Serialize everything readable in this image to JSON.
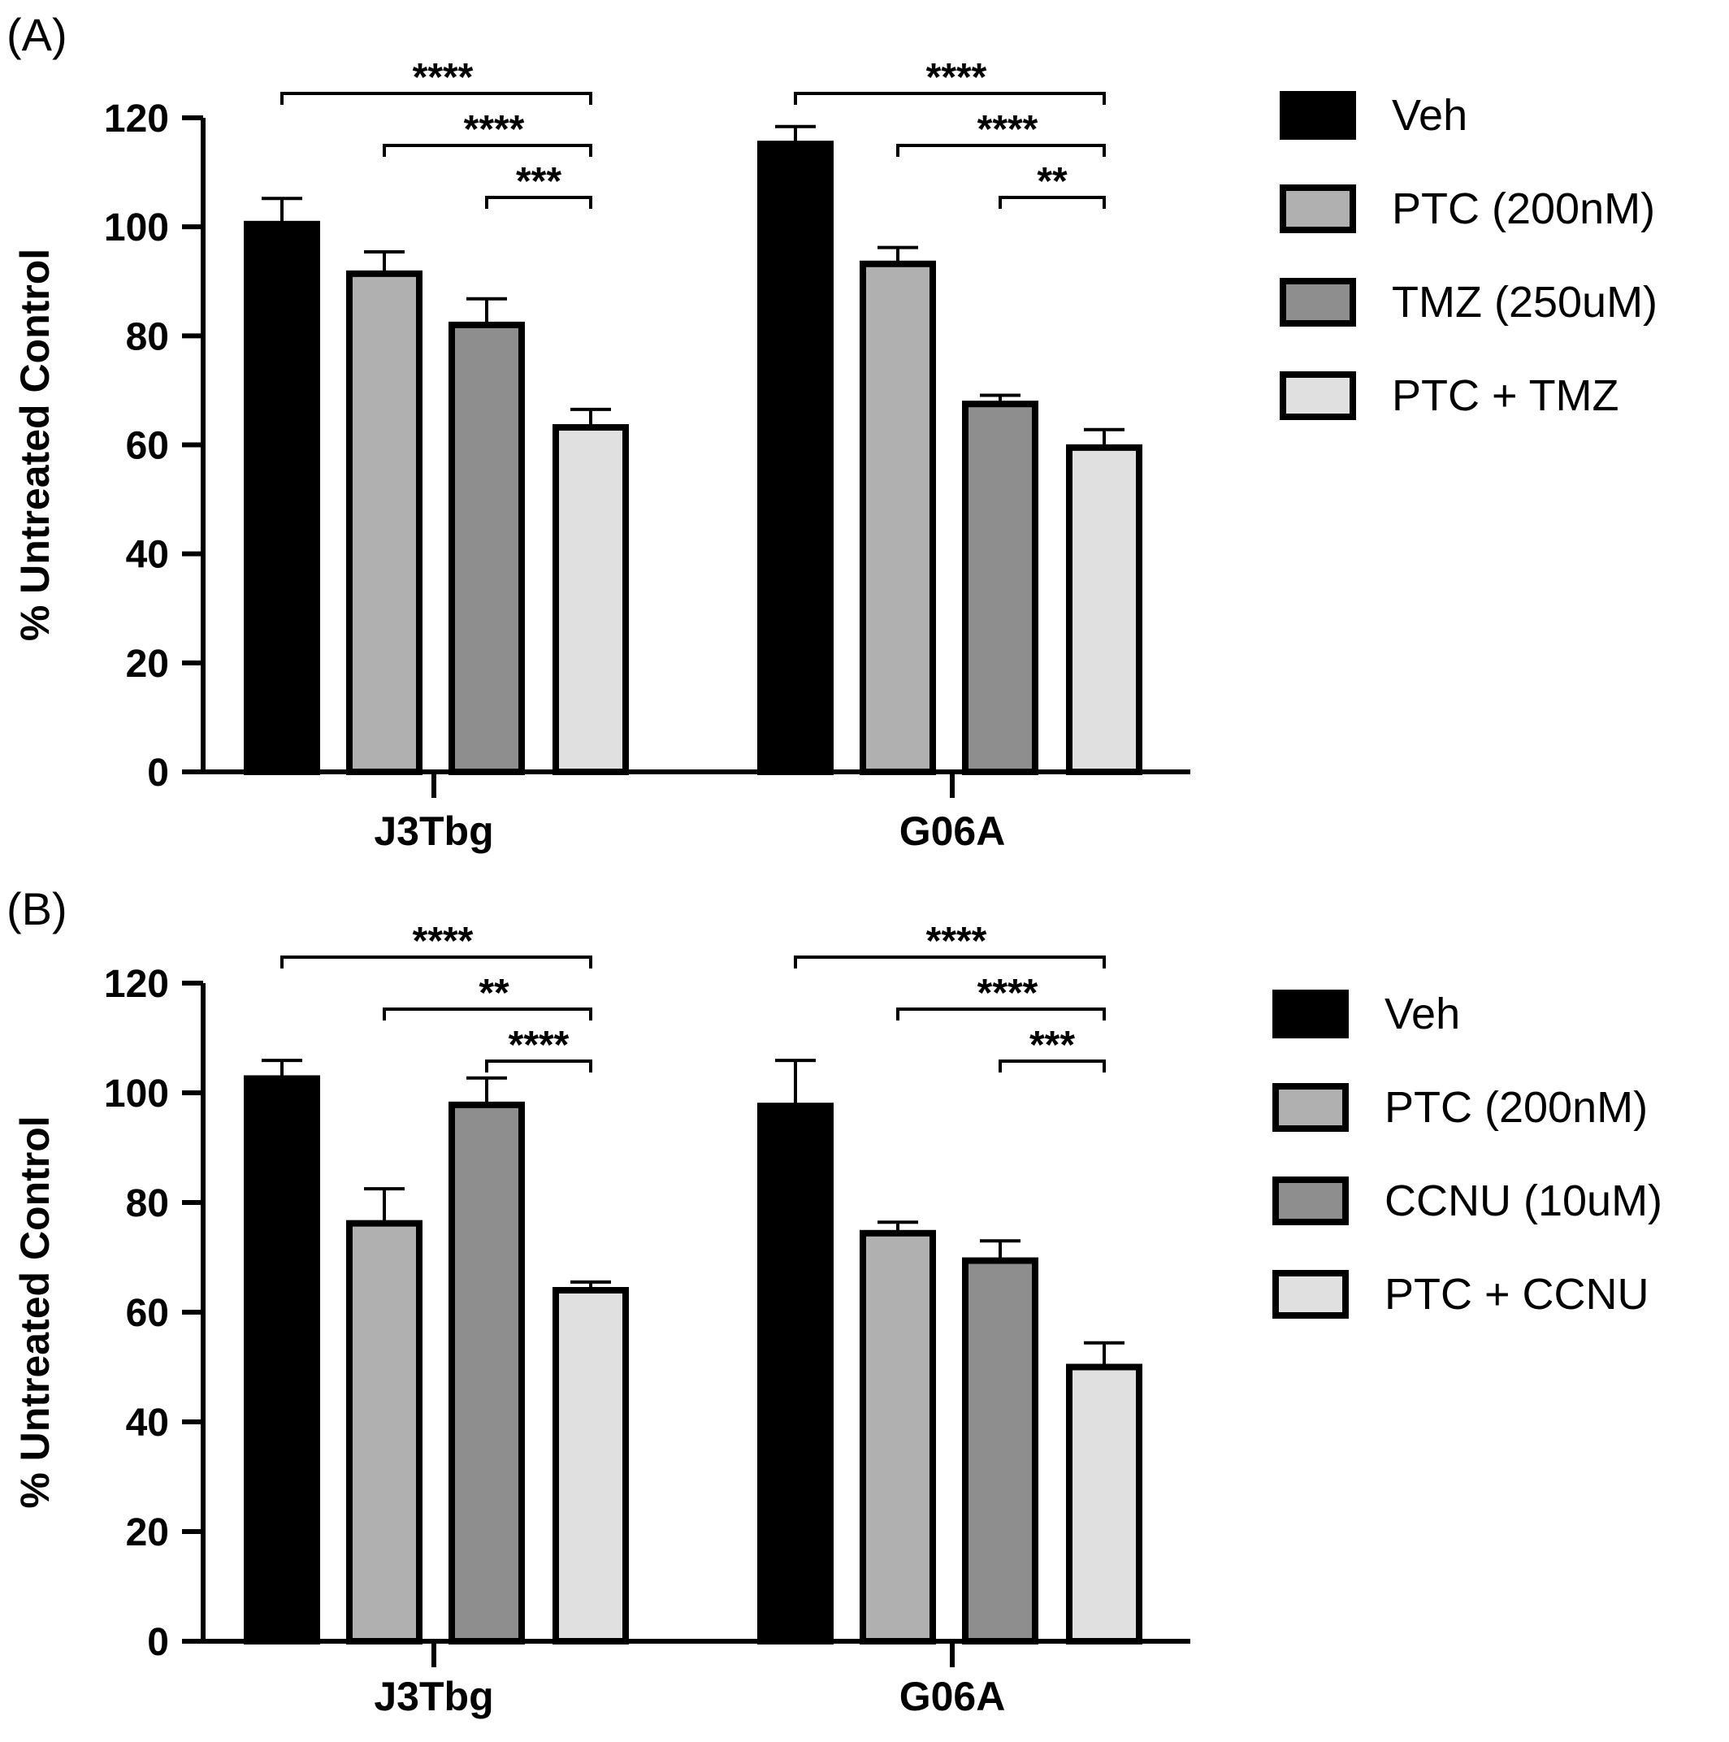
{
  "chart_data": [
    {
      "type": "bar",
      "panel_label": "(A)",
      "ylabel": "% Untreated Control",
      "ylim": [
        0,
        120
      ],
      "yticks": [
        "0",
        "20",
        "40",
        "60",
        "80",
        "100",
        "120"
      ],
      "categories": [
        "J3Tbg",
        "G06A"
      ],
      "legend_position": "right",
      "series": [
        {
          "name": "Veh",
          "color": "#000000",
          "values": [
            100.5,
            115.2
          ],
          "errors": [
            4.7,
            3.2
          ]
        },
        {
          "name": "PTC (200nM)",
          "color": "#b0b0b0",
          "values": [
            91.4,
            93.2
          ],
          "errors": [
            4.0,
            3.0
          ]
        },
        {
          "name": "TMZ (250uM)",
          "color": "#8e8e8e",
          "values": [
            82.0,
            67.5
          ],
          "errors": [
            4.8,
            1.6
          ]
        },
        {
          "name": "PTC + TMZ",
          "color": "#e0e0e0",
          "values": [
            63.2,
            59.5
          ],
          "errors": [
            3.3,
            3.3
          ]
        }
      ],
      "significance": [
        {
          "category": "J3Tbg",
          "from": 0,
          "to": 3,
          "label": "****"
        },
        {
          "category": "J3Tbg",
          "from": 1,
          "to": 3,
          "label": "****"
        },
        {
          "category": "J3Tbg",
          "from": 2,
          "to": 3,
          "label": "***"
        },
        {
          "category": "G06A",
          "from": 0,
          "to": 3,
          "label": "****"
        },
        {
          "category": "G06A",
          "from": 1,
          "to": 3,
          "label": "****"
        },
        {
          "category": "G06A",
          "from": 2,
          "to": 3,
          "label": "**"
        }
      ]
    },
    {
      "type": "bar",
      "panel_label": "(B)",
      "ylabel": "% Untreated Control",
      "ylim": [
        0,
        120
      ],
      "yticks": [
        "0",
        "20",
        "40",
        "60",
        "80",
        "100",
        "120"
      ],
      "categories": [
        "J3Tbg",
        "G06A"
      ],
      "legend_position": "right",
      "series": [
        {
          "name": "Veh",
          "color": "#000000",
          "values": [
            102.6,
            97.6
          ],
          "errors": [
            3.3,
            8.3
          ]
        },
        {
          "name": "PTC (200nM)",
          "color": "#b0b0b0",
          "values": [
            76.2,
            74.4
          ],
          "errors": [
            6.3,
            2.0
          ]
        },
        {
          "name": "CCNU (10uM)",
          "color": "#8e8e8e",
          "values": [
            97.8,
            69.4
          ],
          "errors": [
            4.9,
            3.6
          ]
        },
        {
          "name": "PTC + CCNU",
          "color": "#e0e0e0",
          "values": [
            64.0,
            50.0
          ],
          "errors": [
            1.5,
            4.4
          ]
        }
      ],
      "significance": [
        {
          "category": "J3Tbg",
          "from": 0,
          "to": 3,
          "label": "****"
        },
        {
          "category": "J3Tbg",
          "from": 1,
          "to": 3,
          "label": "**"
        },
        {
          "category": "J3Tbg",
          "from": 2,
          "to": 3,
          "label": "****"
        },
        {
          "category": "G06A",
          "from": 0,
          "to": 3,
          "label": "****"
        },
        {
          "category": "G06A",
          "from": 1,
          "to": 3,
          "label": "****"
        },
        {
          "category": "G06A",
          "from": 2,
          "to": 3,
          "label": "***"
        }
      ]
    }
  ]
}
